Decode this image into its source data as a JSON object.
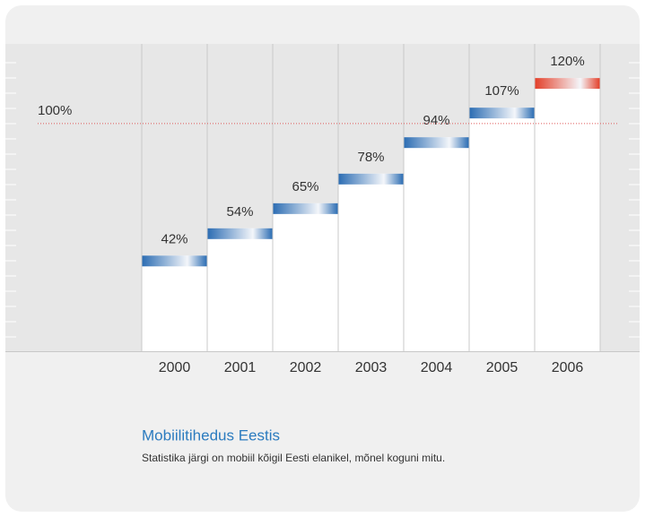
{
  "chart_data": {
    "type": "bar",
    "categories": [
      "2000",
      "2001",
      "2002",
      "2003",
      "2004",
      "2005",
      "2006"
    ],
    "values": [
      42,
      54,
      65,
      78,
      94,
      107,
      120
    ],
    "value_labels": [
      "42%",
      "54%",
      "65%",
      "78%",
      "94%",
      "107%",
      "120%"
    ],
    "colors": [
      "#2c6db3",
      "#2c6db3",
      "#2c6db3",
      "#2c6db3",
      "#2c6db3",
      "#2c6db3",
      "#e3402a"
    ],
    "ylim": [
      0,
      135
    ],
    "reference_line": {
      "value": 100,
      "label": "100%",
      "color": "#e05a5a"
    },
    "title": "Mobiilitihedus Eestis",
    "subtitle": "Statistika järgi on mobiil kõigil Eesti elanikel, mõnel koguni mitu."
  }
}
